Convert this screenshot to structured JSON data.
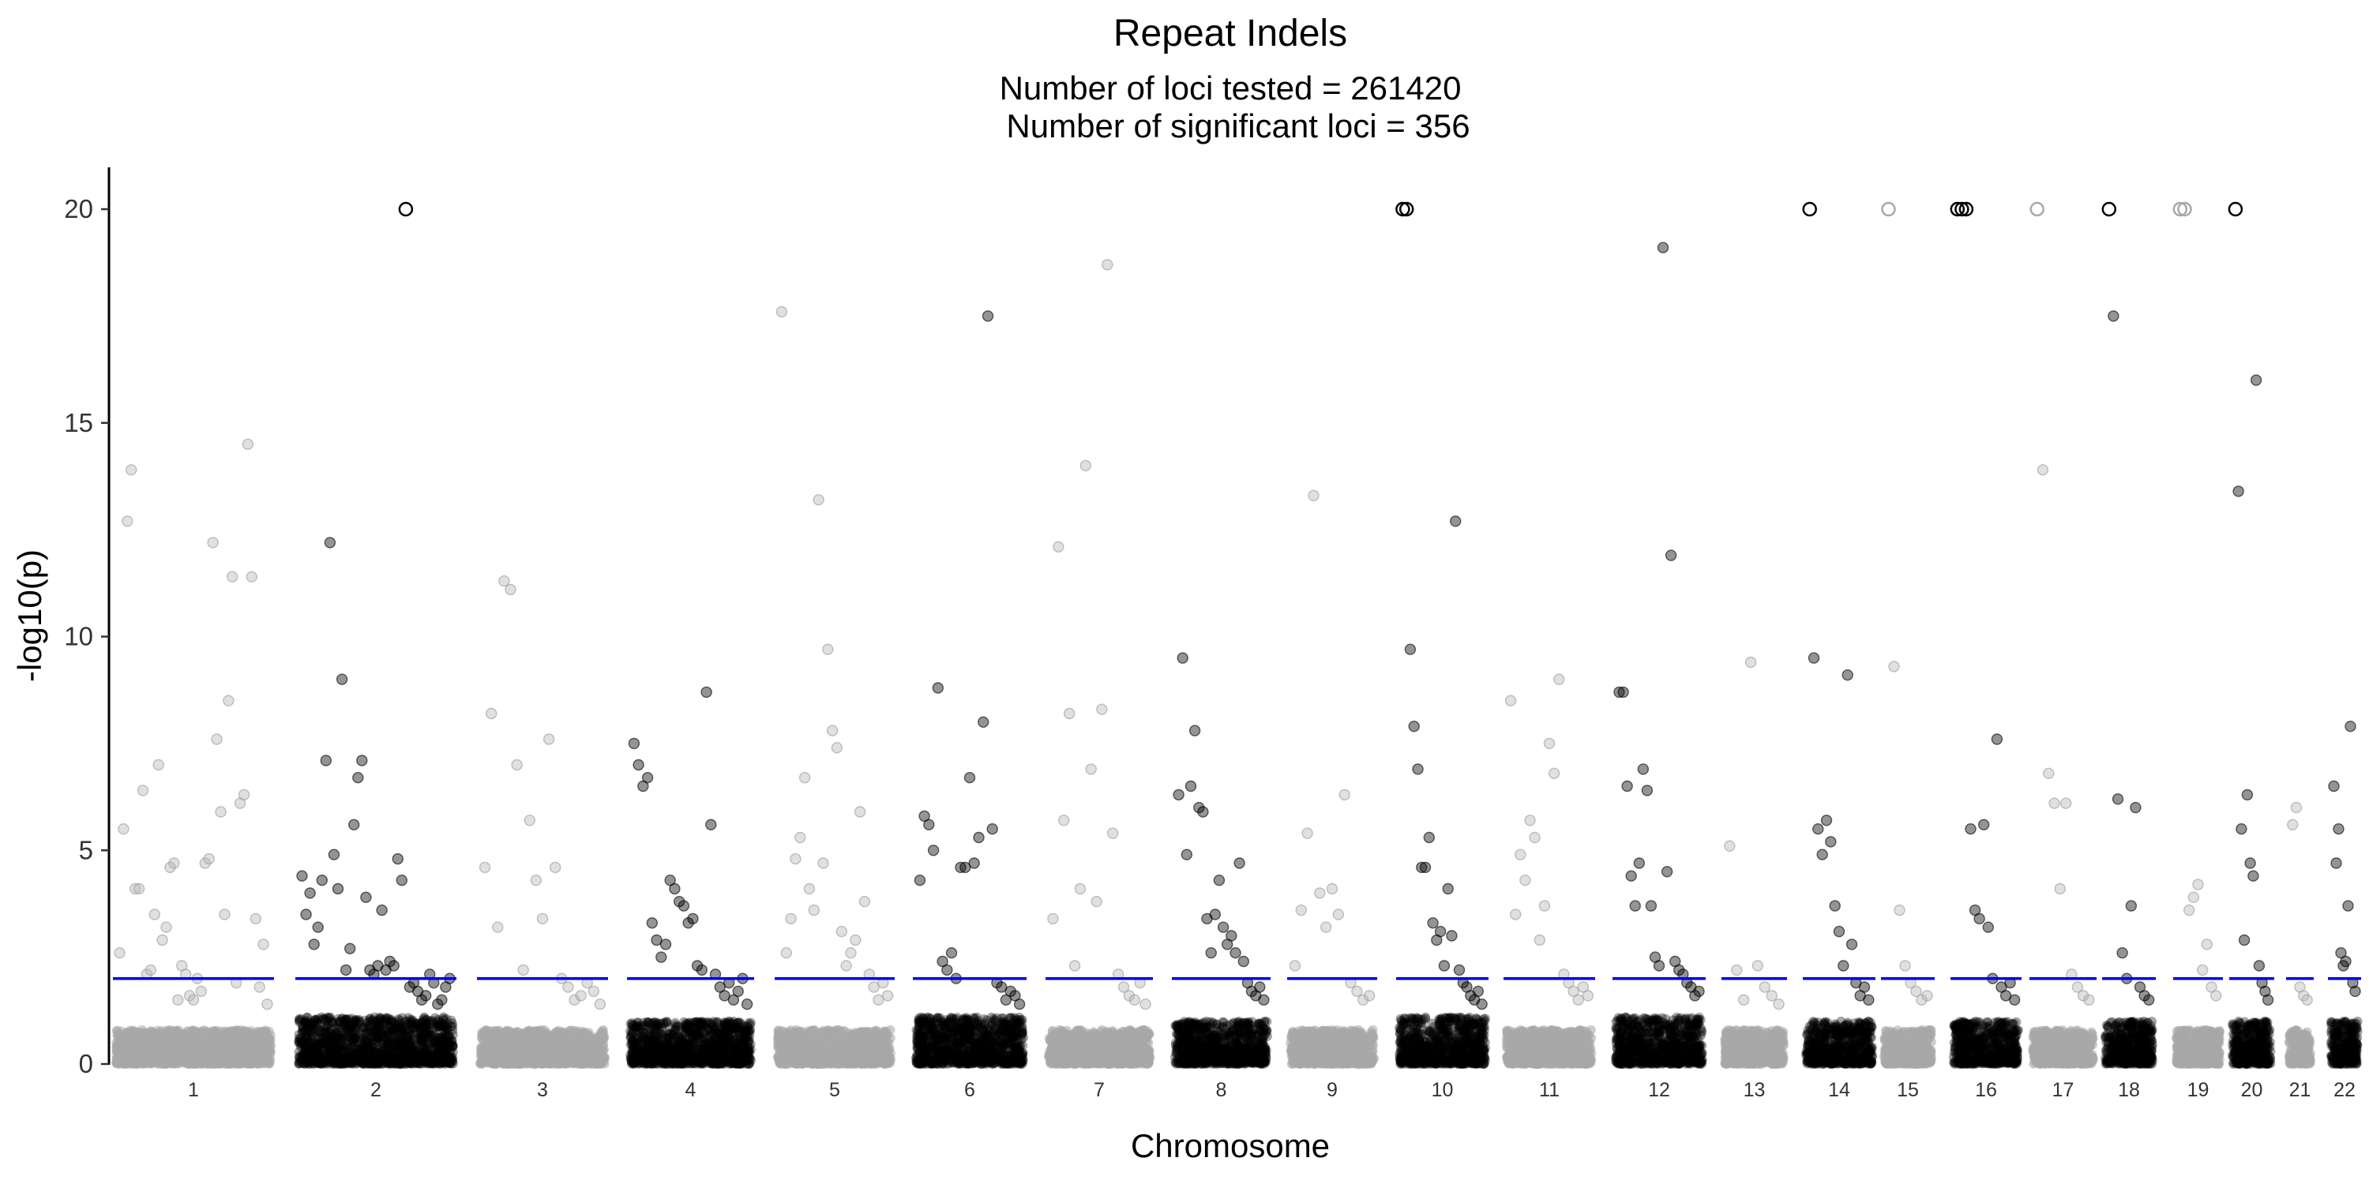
{
  "chart_data": {
    "type": "scatter",
    "subtype": "manhattan",
    "title": "Repeat Indels",
    "subtitle_lines": [
      "Number of loci tested = 261420",
      "Number of significant loci = 356"
    ],
    "xlabel": "Chromosome",
    "ylabel": "-log10(p)",
    "ylim": [
      0,
      21
    ],
    "yticks": [
      0,
      5,
      10,
      15,
      20
    ],
    "grid": false,
    "legend": "none",
    "significance_threshold": 2,
    "colors": {
      "odd_chromosome": "#a8a8a8",
      "even_chromosome": "#000000",
      "threshold_line": "#0000e6",
      "axis": "#000000"
    },
    "chromosomes": [
      {
        "label": "1",
        "low_band_max": 0.8,
        "points": [
          2.6,
          5.5,
          12.7,
          13.9,
          4.1,
          4.1,
          6.4,
          2.1,
          2.2,
          3.5,
          7.0,
          2.9,
          3.2,
          4.6,
          4.7,
          1.5,
          2.3,
          2.1,
          1.6,
          1.5,
          2.0,
          1.7,
          4.7,
          4.8,
          12.2,
          7.6,
          5.9,
          3.5,
          8.5,
          11.4,
          1.9,
          6.1,
          6.3,
          14.5,
          11.4,
          3.4,
          1.8,
          2.8,
          1.4
        ]
      },
      {
        "label": "2",
        "low_band_max": 1.1,
        "points": [
          4.4,
          3.5,
          4.0,
          2.8,
          3.2,
          4.3,
          7.1,
          12.2,
          4.9,
          4.1,
          9.0,
          2.2,
          2.7,
          5.6,
          6.7,
          7.1,
          3.9,
          2.2,
          2.1,
          2.3,
          3.6,
          2.2,
          2.4,
          2.3,
          4.8,
          4.3,
          20,
          1.8,
          1.9,
          1.7,
          1.5,
          1.6,
          2.1,
          1.9,
          1.4,
          1.5,
          1.8,
          2.0
        ]
      },
      {
        "label": "3",
        "low_band_max": 0.8,
        "points": [
          4.6,
          8.2,
          3.2,
          11.3,
          11.1,
          7.0,
          2.2,
          5.7,
          4.3,
          3.4,
          7.6,
          4.6,
          2.0,
          1.8,
          1.5,
          1.6,
          1.9,
          1.7,
          1.4
        ]
      },
      {
        "label": "4",
        "low_band_max": 1.0,
        "points": [
          7.5,
          7.0,
          6.5,
          6.7,
          3.3,
          2.9,
          2.5,
          2.8,
          4.3,
          4.1,
          3.8,
          3.7,
          3.3,
          3.4,
          2.3,
          2.2,
          8.7,
          5.6,
          2.1,
          1.8,
          1.6,
          1.9,
          1.5,
          1.7,
          2.0,
          1.4
        ]
      },
      {
        "label": "5",
        "low_band_max": 0.8,
        "points": [
          17.6,
          2.6,
          3.4,
          4.8,
          5.3,
          6.7,
          4.1,
          3.6,
          13.2,
          4.7,
          9.7,
          7.8,
          7.4,
          3.1,
          2.3,
          2.6,
          2.9,
          5.9,
          3.8,
          2.1,
          1.8,
          1.5,
          1.9,
          1.6
        ]
      },
      {
        "label": "6",
        "low_band_max": 1.1,
        "points": [
          4.3,
          5.8,
          5.6,
          5.0,
          8.8,
          2.4,
          2.2,
          2.6,
          2.0,
          4.6,
          4.6,
          6.7,
          4.7,
          5.3,
          8.0,
          17.5,
          5.5,
          1.9,
          1.8,
          1.5,
          1.7,
          1.6,
          1.4
        ]
      },
      {
        "label": "7",
        "low_band_max": 0.8,
        "points": [
          3.4,
          12.1,
          5.7,
          8.2,
          2.3,
          4.1,
          14.0,
          6.9,
          3.8,
          8.3,
          18.7,
          5.4,
          2.1,
          1.8,
          1.6,
          1.5,
          1.9,
          1.4
        ]
      },
      {
        "label": "8",
        "low_band_max": 1.0,
        "points": [
          6.3,
          9.5,
          4.9,
          6.5,
          7.8,
          6.0,
          5.9,
          3.4,
          2.6,
          3.5,
          4.3,
          3.2,
          2.8,
          3.0,
          2.6,
          4.7,
          2.4,
          1.9,
          1.7,
          1.6,
          1.8,
          1.5
        ]
      },
      {
        "label": "9",
        "low_band_max": 0.8,
        "points": [
          2.3,
          3.6,
          5.4,
          13.3,
          4.0,
          3.2,
          4.1,
          3.5,
          6.3,
          1.9,
          1.7,
          1.5,
          1.6
        ]
      },
      {
        "label": "10",
        "low_band_max": 1.1,
        "points": [
          20,
          20,
          9.7,
          7.9,
          6.9,
          4.6,
          4.6,
          5.3,
          3.3,
          2.9,
          3.1,
          2.3,
          4.1,
          3.0,
          12.7,
          2.2,
          1.9,
          1.8,
          1.6,
          1.5,
          1.7,
          1.4
        ]
      },
      {
        "label": "11",
        "low_band_max": 0.8,
        "points": [
          8.5,
          3.5,
          4.9,
          4.3,
          5.7,
          5.3,
          2.9,
          3.7,
          7.5,
          6.8,
          9.0,
          2.1,
          1.9,
          1.7,
          1.5,
          1.8,
          1.6
        ]
      },
      {
        "label": "12",
        "low_band_max": 1.1,
        "points": [
          8.7,
          8.7,
          6.5,
          4.4,
          3.7,
          4.7,
          6.9,
          6.4,
          3.7,
          2.5,
          2.3,
          19.1,
          4.5,
          11.9,
          2.4,
          2.2,
          2.1,
          1.9,
          1.8,
          1.6,
          1.7
        ]
      },
      {
        "label": "13",
        "low_band_max": 0.8,
        "points": [
          5.1,
          2.2,
          1.5,
          9.4,
          2.3,
          1.8,
          1.6,
          1.4
        ]
      },
      {
        "label": "14",
        "low_band_max": 1.0,
        "points": [
          20,
          9.5,
          5.5,
          4.9,
          5.7,
          5.2,
          3.7,
          3.1,
          2.3,
          9.1,
          2.8,
          1.9,
          1.6,
          1.8,
          1.5
        ]
      },
      {
        "label": "15",
        "low_band_max": 0.8,
        "points": [
          20,
          9.3,
          3.6,
          2.3,
          1.9,
          1.7,
          1.5,
          1.6
        ]
      },
      {
        "label": "16",
        "low_band_max": 1.0,
        "points": [
          20,
          20,
          20,
          5.5,
          3.6,
          3.4,
          5.6,
          3.2,
          2.0,
          7.6,
          1.8,
          1.6,
          1.9,
          1.5
        ]
      },
      {
        "label": "17",
        "low_band_max": 0.8,
        "points": [
          20,
          13.9,
          6.8,
          6.1,
          4.1,
          6.1,
          2.1,
          1.8,
          1.6,
          1.5
        ]
      },
      {
        "label": "18",
        "low_band_max": 1.0,
        "points": [
          20,
          17.5,
          6.2,
          2.6,
          2.0,
          3.7,
          6.0,
          1.8,
          1.6,
          1.5
        ]
      },
      {
        "label": "19",
        "low_band_max": 0.8,
        "points": [
          20,
          20,
          3.6,
          3.9,
          4.2,
          2.2,
          2.8,
          1.8,
          1.6
        ]
      },
      {
        "label": "20",
        "low_band_max": 1.0,
        "points": [
          20,
          13.4,
          5.5,
          2.9,
          6.3,
          4.7,
          4.4,
          16.0,
          2.3,
          1.9,
          1.7,
          1.5
        ]
      },
      {
        "label": "21",
        "low_band_max": 0.8,
        "points": [
          5.6,
          6.0,
          1.8,
          1.6,
          1.5
        ]
      },
      {
        "label": "22",
        "low_band_max": 1.0,
        "points": [
          6.5,
          4.7,
          5.5,
          2.6,
          2.3,
          2.4,
          3.7,
          7.9,
          1.9,
          1.7
        ]
      }
    ]
  }
}
